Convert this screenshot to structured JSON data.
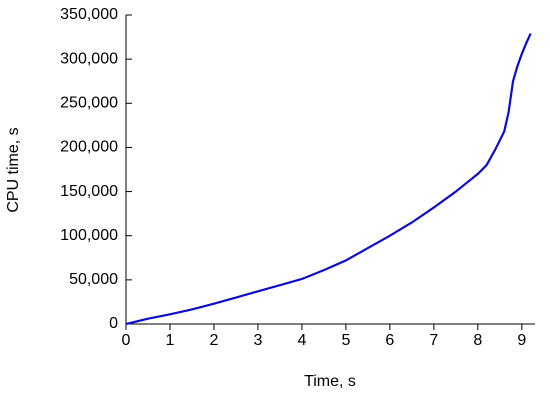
{
  "chart_data": {
    "type": "line",
    "xlabel": "Time, s",
    "ylabel": "CPU time, s",
    "x": [
      0,
      0.5,
      1,
      1.5,
      2,
      2.5,
      3,
      3.5,
      4,
      4.5,
      5,
      5.5,
      6,
      6.5,
      7,
      7.5,
      8,
      8.2,
      8.4,
      8.6,
      8.7,
      8.8,
      8.9,
      9.0,
      9.1,
      9.2
    ],
    "series": [
      {
        "color": "#0c0cd0",
        "values": [
          0,
          6000,
          11000,
          16500,
          23000,
          30000,
          37000,
          44000,
          51000,
          61000,
          72000,
          86000,
          100000,
          115000,
          132000,
          150000,
          170000,
          180000,
          198000,
          218000,
          240000,
          275000,
          292000,
          306000,
          318000,
          329000
        ]
      }
    ],
    "xlim": [
      0,
      9.3
    ],
    "xticks": [
      0,
      1,
      2,
      3,
      4,
      5,
      6,
      7,
      8,
      9
    ],
    "ylim": [
      0,
      350000
    ],
    "yticks": [
      0,
      {
        "value": 50000,
        "label": "50,000"
      },
      {
        "value": 100000,
        "label": "100,000"
      },
      {
        "value": 150000,
        "label": "150,000"
      },
      {
        "value": 200000,
        "label": "200,000"
      },
      {
        "value": 250000,
        "label": "250,000"
      },
      {
        "value": 300000,
        "label": "300,000"
      },
      {
        "value": 350000,
        "label": "350,000"
      }
    ],
    "grid": false
  }
}
